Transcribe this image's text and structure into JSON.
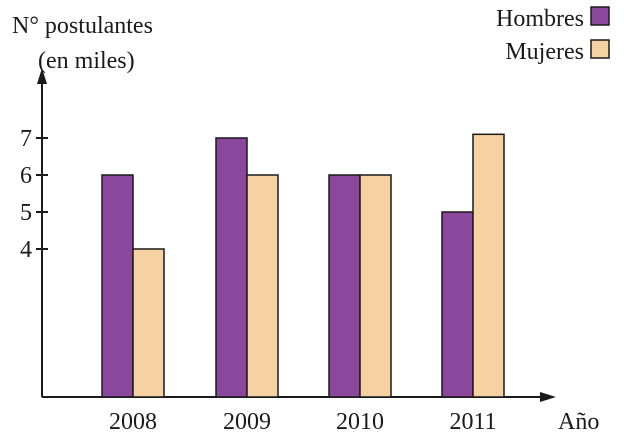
{
  "chart_data": {
    "type": "bar",
    "ylabel_line1": "N° postulantes",
    "ylabel_line2": "(en miles)",
    "xlabel": "Año",
    "categories": [
      "2008",
      "2009",
      "2010",
      "2011"
    ],
    "yticks": [
      "4",
      "5",
      "6",
      "7"
    ],
    "ylim": [
      0,
      7
    ],
    "grid": false,
    "legend_position": "top-right",
    "series": [
      {
        "name": "Hombres",
        "values": [
          6,
          7,
          6,
          5
        ],
        "color": "#8B479C"
      },
      {
        "name": "Mujeres",
        "values": [
          4,
          6,
          6,
          7.1
        ],
        "color": "#F6D2A2"
      }
    ]
  }
}
